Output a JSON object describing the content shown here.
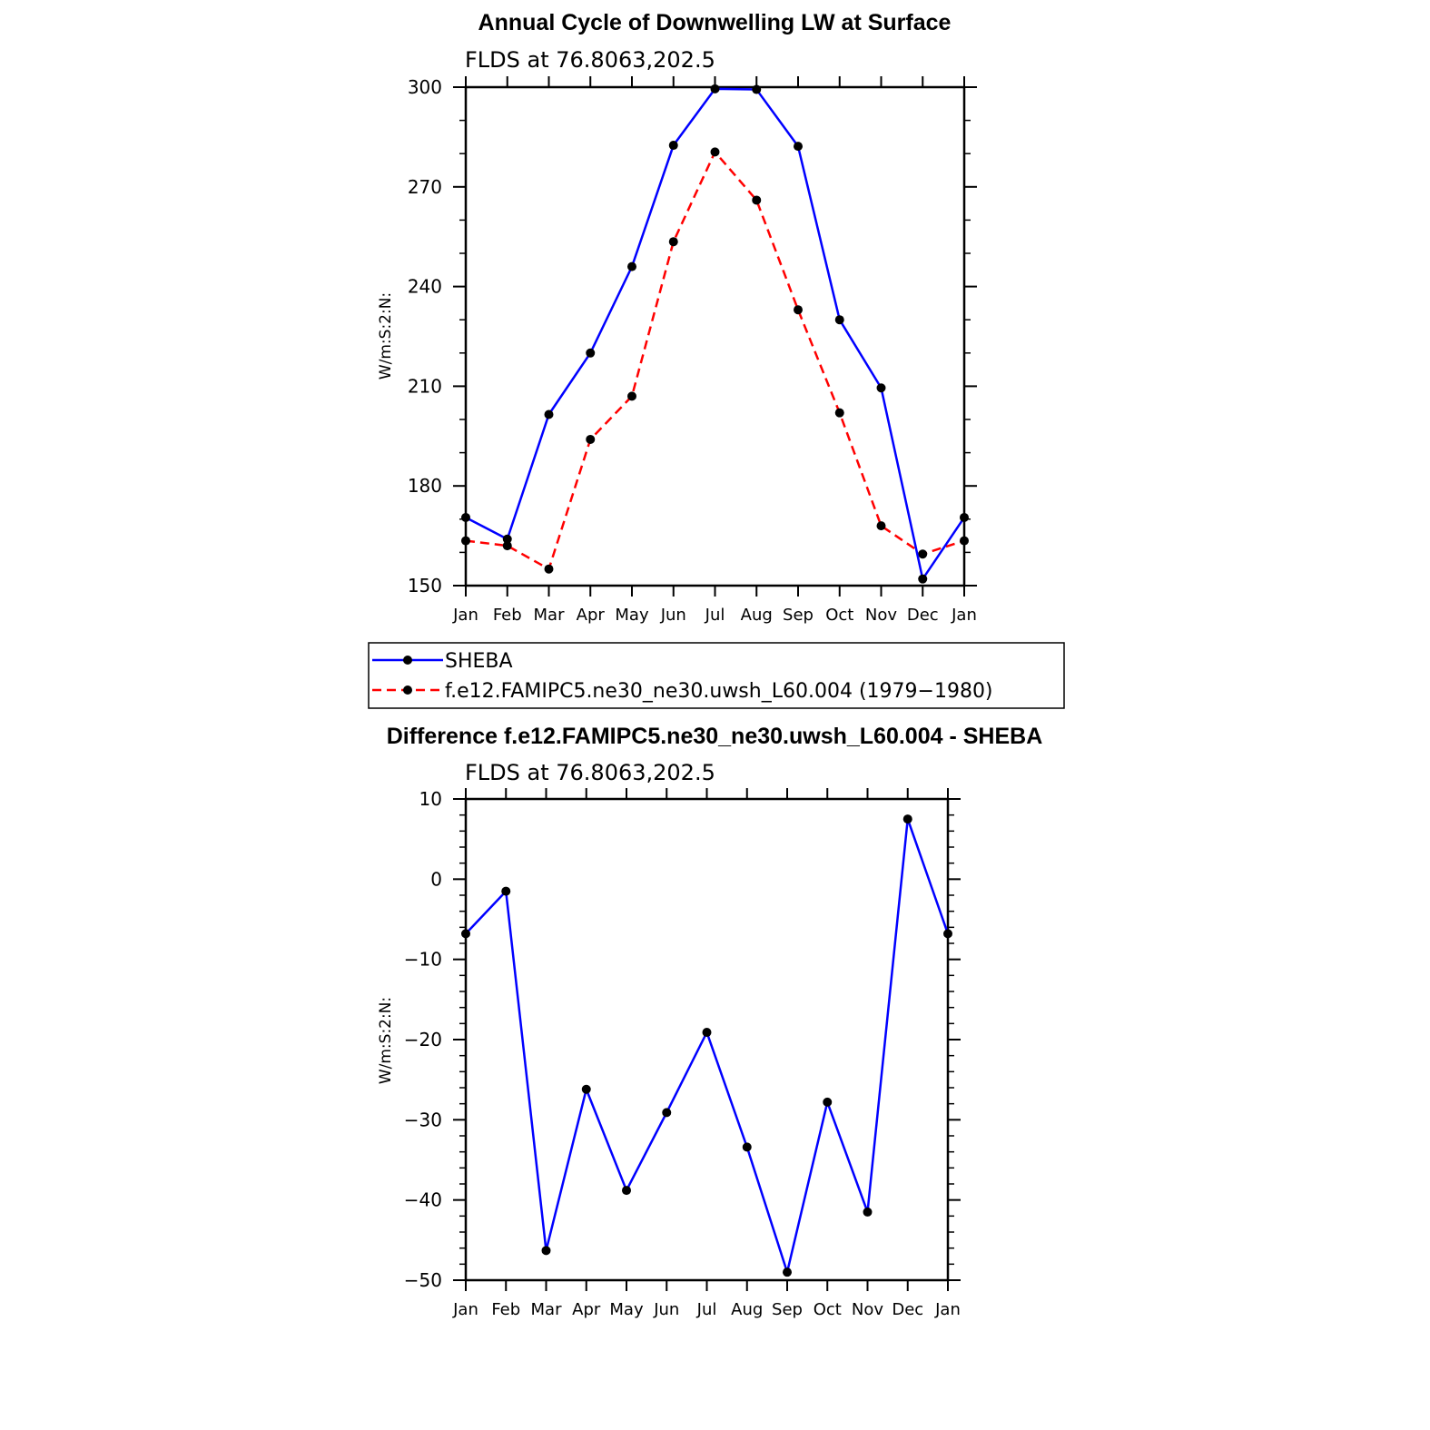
{
  "chart_data": [
    {
      "type": "line",
      "title": "Annual Cycle of Downwelling LW at Surface",
      "subtitle": "FLDS at 76.8063,202.5",
      "xlabel": "",
      "ylabel": "W/m:S:2:N:",
      "categories": [
        "Jan",
        "Feb",
        "Mar",
        "Apr",
        "May",
        "Jun",
        "Jul",
        "Aug",
        "Sep",
        "Oct",
        "Nov",
        "Dec",
        "Jan"
      ],
      "ylim": [
        150,
        300
      ],
      "yticks": [
        "300",
        "270",
        "240",
        "210",
        "180",
        "150"
      ],
      "ytick_values": [
        300,
        270,
        240,
        210,
        180,
        150
      ],
      "grid": false,
      "series": [
        {
          "name": "SHEBA",
          "color": "#0000ff",
          "dash": "solid",
          "values": [
            170.5,
            164,
            201.5,
            220,
            246,
            282.5,
            299.5,
            299.3,
            282.2,
            230,
            209.5,
            152,
            170.5
          ]
        },
        {
          "name": "f.e12.FAMIPC5.ne30_ne30.uwsh_L60.004 (1979−1980)",
          "color": "#ff0000",
          "dash": "dashed",
          "values": [
            163.5,
            162,
            155,
            194,
            207,
            253.5,
            280.5,
            266,
            233,
            202,
            168,
            159.5,
            163.5
          ]
        }
      ],
      "legend": "below"
    },
    {
      "type": "line",
      "title": "Difference f.e12.FAMIPC5.ne30_ne30.uwsh_L60.004 - SHEBA",
      "subtitle": "FLDS at 76.8063,202.5",
      "xlabel": "",
      "ylabel": "W/m:S:2:N:",
      "categories": [
        "Jan",
        "Feb",
        "Mar",
        "Apr",
        "May",
        "Jun",
        "Jul",
        "Aug",
        "Sep",
        "Oct",
        "Nov",
        "Dec",
        "Jan"
      ],
      "ylim": [
        -50,
        10
      ],
      "yticks": [
        "10",
        "0",
        "−10",
        "−20",
        "−30",
        "−40",
        "−50"
      ],
      "ytick_values": [
        10,
        0,
        -10,
        -20,
        -30,
        -40,
        -50
      ],
      "grid": false,
      "series": [
        {
          "color": "#0000ff",
          "dash": "solid",
          "values": [
            -6.8,
            -1.5,
            -46.3,
            -26.2,
            -38.8,
            -29.1,
            -19.1,
            -33.4,
            -49,
            -27.8,
            -41.5,
            7.5,
            -6.8
          ]
        }
      ]
    }
  ]
}
